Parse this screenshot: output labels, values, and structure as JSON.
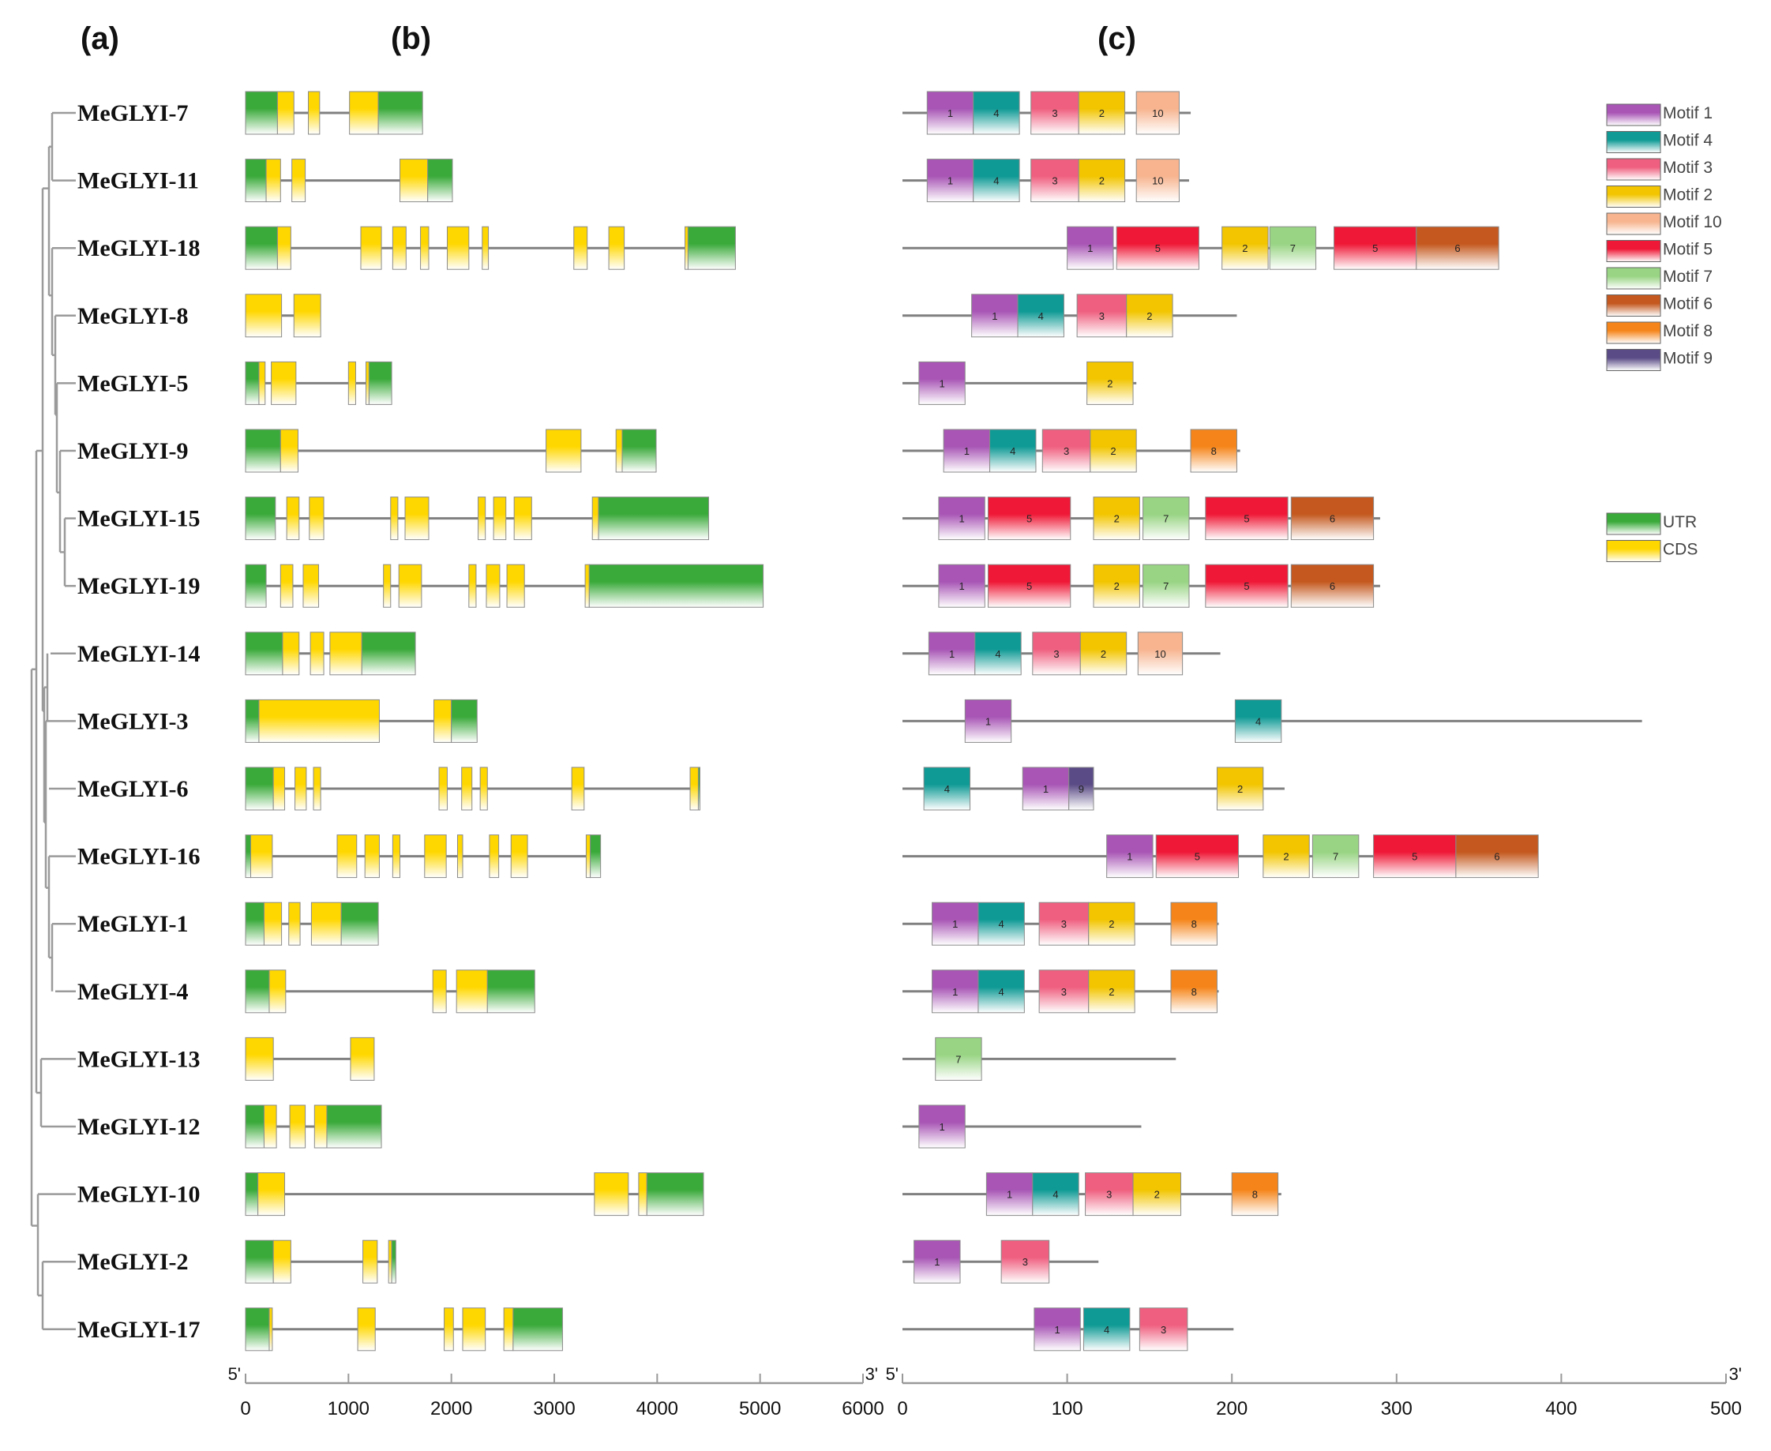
{
  "panel_labels": [
    "(a)",
    "(b)",
    "(c)"
  ],
  "colors": {
    "utr_top": "#3aaa3a",
    "cds_top": "#ffd700",
    "line": "#808080",
    "tree": "#9a9a9a",
    "motifs": {
      "1": "#a855b5",
      "2": "#f2c500",
      "3": "#ef5f7f",
      "4": "#0f9a95",
      "5": "#ef1836",
      "6": "#c4581e",
      "7": "#98d483",
      "8": "#f5851a",
      "9": "#5a4b86",
      "10": "#f7b48f"
    }
  },
  "legend": {
    "motifs": [
      {
        "id": "1",
        "label": "Motif 1"
      },
      {
        "id": "4",
        "label": "Motif 4"
      },
      {
        "id": "3",
        "label": "Motif 3"
      },
      {
        "id": "2",
        "label": "Motif 2"
      },
      {
        "id": "10",
        "label": "Motif 10"
      },
      {
        "id": "5",
        "label": "Motif 5"
      },
      {
        "id": "7",
        "label": "Motif 7"
      },
      {
        "id": "6",
        "label": "Motif 6"
      },
      {
        "id": "8",
        "label": "Motif 8"
      },
      {
        "id": "9",
        "label": "Motif 9"
      }
    ],
    "features": [
      {
        "id": "UTR",
        "label": "UTR"
      },
      {
        "id": "CDS",
        "label": "CDS"
      }
    ]
  },
  "gene_axis": {
    "min": 0,
    "max": 6000,
    "ticks": [
      "0",
      "1000",
      "2000",
      "3000",
      "4000",
      "5000",
      "6000"
    ],
    "start_label": "5'",
    "end_label": "3'"
  },
  "motif_axis": {
    "min": 0,
    "max": 500,
    "ticks": [
      "0",
      "100",
      "200",
      "300",
      "400",
      "500"
    ],
    "start_label": "5'",
    "end_label": "3'"
  },
  "genes": [
    {
      "name": "MeGLYI-7",
      "length": 1720,
      "features": [
        [
          "UTR",
          0,
          310
        ],
        [
          "CDS",
          310,
          470
        ],
        [
          "CDS",
          610,
          720
        ],
        [
          "CDS",
          1010,
          1290
        ],
        [
          "UTR",
          1290,
          1720
        ]
      ],
      "protein_length": 175,
      "motifs": [
        [
          "1",
          15,
          43
        ],
        [
          "4",
          43,
          71
        ],
        [
          "3",
          78,
          107
        ],
        [
          "2",
          107,
          135
        ],
        [
          "10",
          142,
          168
        ]
      ]
    },
    {
      "name": "MeGLYI-11",
      "length": 2010,
      "features": [
        [
          "UTR",
          0,
          200
        ],
        [
          "CDS",
          200,
          340
        ],
        [
          "CDS",
          450,
          580
        ],
        [
          "CDS",
          1500,
          1770
        ],
        [
          "UTR",
          1770,
          2010
        ]
      ],
      "protein_length": 174,
      "motifs": [
        [
          "1",
          15,
          43
        ],
        [
          "4",
          43,
          71
        ],
        [
          "3",
          78,
          107
        ],
        [
          "2",
          107,
          135
        ],
        [
          "10",
          142,
          168
        ]
      ]
    },
    {
      "name": "MeGLYI-18",
      "length": 4760,
      "features": [
        [
          "UTR",
          0,
          310
        ],
        [
          "CDS",
          310,
          440
        ],
        [
          "CDS",
          1120,
          1320
        ],
        [
          "CDS",
          1430,
          1560
        ],
        [
          "CDS",
          1700,
          1780
        ],
        [
          "CDS",
          1960,
          2170
        ],
        [
          "CDS",
          2300,
          2360
        ],
        [
          "CDS",
          3190,
          3320
        ],
        [
          "CDS",
          3530,
          3680
        ],
        [
          "CDS",
          4270,
          4300
        ],
        [
          "UTR",
          4300,
          4760
        ]
      ],
      "protein_length": 361,
      "motifs": [
        [
          "1",
          100,
          128
        ],
        [
          "5",
          130,
          180
        ],
        [
          "2",
          194,
          222
        ],
        [
          "7",
          223,
          251
        ],
        [
          "5",
          262,
          312
        ],
        [
          "6",
          312,
          362
        ]
      ]
    },
    {
      "name": "MeGLYI-8",
      "length": 730,
      "features": [
        [
          "CDS",
          0,
          350
        ],
        [
          "CDS",
          470,
          730
        ]
      ],
      "protein_length": 203,
      "motifs": [
        [
          "1",
          42,
          70
        ],
        [
          "4",
          70,
          98
        ],
        [
          "3",
          106,
          136
        ],
        [
          "2",
          136,
          164
        ]
      ]
    },
    {
      "name": "MeGLYI-5",
      "length": 1420,
      "features": [
        [
          "UTR",
          0,
          130
        ],
        [
          "CDS",
          130,
          190
        ],
        [
          "CDS",
          250,
          490
        ],
        [
          "CDS",
          1000,
          1070
        ],
        [
          "CDS",
          1170,
          1200
        ],
        [
          "UTR",
          1200,
          1420
        ]
      ],
      "protein_length": 142,
      "motifs": [
        [
          "1",
          10,
          38
        ],
        [
          "2",
          112,
          140
        ]
      ]
    },
    {
      "name": "MeGLYI-9",
      "length": 3990,
      "features": [
        [
          "UTR",
          0,
          340
        ],
        [
          "CDS",
          340,
          510
        ],
        [
          "CDS",
          2920,
          3260
        ],
        [
          "CDS",
          3600,
          3660
        ],
        [
          "UTR",
          3660,
          3990
        ]
      ],
      "protein_length": 205,
      "motifs": [
        [
          "1",
          25,
          53
        ],
        [
          "4",
          53,
          81
        ],
        [
          "3",
          85,
          114
        ],
        [
          "2",
          114,
          142
        ],
        [
          "8",
          175,
          203
        ]
      ]
    },
    {
      "name": "MeGLYI-15",
      "length": 4500,
      "features": [
        [
          "UTR",
          0,
          290
        ],
        [
          "CDS",
          400,
          520
        ],
        [
          "CDS",
          620,
          760
        ],
        [
          "CDS",
          1410,
          1480
        ],
        [
          "CDS",
          1550,
          1780
        ],
        [
          "CDS",
          2260,
          2330
        ],
        [
          "CDS",
          2410,
          2530
        ],
        [
          "CDS",
          2610,
          2780
        ],
        [
          "CDS",
          3370,
          3430
        ],
        [
          "UTR",
          3430,
          4500
        ]
      ],
      "protein_length": 290,
      "motifs": [
        [
          "1",
          22,
          50
        ],
        [
          "5",
          52,
          102
        ],
        [
          "2",
          116,
          144
        ],
        [
          "7",
          146,
          174
        ],
        [
          "5",
          184,
          234
        ],
        [
          "6",
          236,
          286
        ]
      ]
    },
    {
      "name": "MeGLYI-19",
      "length": 5030,
      "features": [
        [
          "UTR",
          0,
          200
        ],
        [
          "CDS",
          340,
          460
        ],
        [
          "CDS",
          560,
          710
        ],
        [
          "CDS",
          1340,
          1410
        ],
        [
          "CDS",
          1490,
          1710
        ],
        [
          "CDS",
          2170,
          2240
        ],
        [
          "CDS",
          2340,
          2470
        ],
        [
          "CDS",
          2540,
          2710
        ],
        [
          "CDS",
          3300,
          3340
        ],
        [
          "UTR",
          3340,
          5030
        ]
      ],
      "protein_length": 290,
      "motifs": [
        [
          "1",
          22,
          50
        ],
        [
          "5",
          52,
          102
        ],
        [
          "2",
          116,
          144
        ],
        [
          "7",
          146,
          174
        ],
        [
          "5",
          184,
          234
        ],
        [
          "6",
          236,
          286
        ]
      ]
    },
    {
      "name": "MeGLYI-14",
      "length": 1650,
      "features": [
        [
          "UTR",
          0,
          360
        ],
        [
          "CDS",
          360,
          520
        ],
        [
          "CDS",
          630,
          760
        ],
        [
          "CDS",
          820,
          1130
        ],
        [
          "UTR",
          1130,
          1650
        ]
      ],
      "protein_length": 193,
      "motifs": [
        [
          "1",
          16,
          44
        ],
        [
          "4",
          44,
          72
        ],
        [
          "3",
          79,
          108
        ],
        [
          "2",
          108,
          136
        ],
        [
          "10",
          143,
          170
        ]
      ]
    },
    {
      "name": "MeGLYI-3",
      "length": 2250,
      "features": [
        [
          "UTR",
          0,
          130
        ],
        [
          "CDS",
          130,
          1300
        ],
        [
          "CDS",
          1830,
          2000
        ],
        [
          "UTR",
          2000,
          2250
        ]
      ],
      "protein_length": 449,
      "motifs": [
        [
          "1",
          38,
          66
        ],
        [
          "4",
          202,
          230
        ]
      ]
    },
    {
      "name": "MeGLYI-6",
      "length": 4410,
      "features": [
        [
          "UTR",
          0,
          270
        ],
        [
          "CDS",
          270,
          380
        ],
        [
          "CDS",
          480,
          590
        ],
        [
          "CDS",
          660,
          730
        ],
        [
          "CDS",
          1880,
          1960
        ],
        [
          "CDS",
          2100,
          2200
        ],
        [
          "CDS",
          2280,
          2350
        ],
        [
          "CDS",
          3170,
          3290
        ],
        [
          "CDS",
          4320,
          4400
        ],
        [
          "UTR",
          4400,
          4410
        ]
      ],
      "protein_length": 232,
      "motifs": [
        [
          "4",
          13,
          41
        ],
        [
          "1",
          73,
          101
        ],
        [
          "9",
          101,
          116
        ],
        [
          "2",
          191,
          219
        ]
      ]
    },
    {
      "name": "MeGLYI-16",
      "length": 3450,
      "features": [
        [
          "UTR",
          0,
          50
        ],
        [
          "CDS",
          50,
          260
        ],
        [
          "CDS",
          890,
          1080
        ],
        [
          "CDS",
          1160,
          1300
        ],
        [
          "CDS",
          1430,
          1500
        ],
        [
          "CDS",
          1740,
          1950
        ],
        [
          "CDS",
          2060,
          2110
        ],
        [
          "CDS",
          2370,
          2460
        ],
        [
          "CDS",
          2580,
          2740
        ],
        [
          "CDS",
          3310,
          3350
        ],
        [
          "UTR",
          3350,
          3450
        ]
      ],
      "protein_length": 385,
      "motifs": [
        [
          "1",
          124,
          152
        ],
        [
          "5",
          154,
          204
        ],
        [
          "2",
          219,
          247
        ],
        [
          "7",
          249,
          277
        ],
        [
          "5",
          286,
          336
        ],
        [
          "6",
          336,
          386
        ]
      ]
    },
    {
      "name": "MeGLYI-1",
      "length": 1290,
      "features": [
        [
          "UTR",
          0,
          180
        ],
        [
          "CDS",
          180,
          350
        ],
        [
          "CDS",
          420,
          530
        ],
        [
          "CDS",
          640,
          930
        ],
        [
          "UTR",
          930,
          1290
        ]
      ],
      "protein_length": 192,
      "motifs": [
        [
          "1",
          18,
          46
        ],
        [
          "4",
          46,
          74
        ],
        [
          "3",
          83,
          113
        ],
        [
          "2",
          113,
          141
        ],
        [
          "8",
          163,
          191
        ]
      ]
    },
    {
      "name": "MeGLYI-4",
      "length": 2810,
      "features": [
        [
          "UTR",
          0,
          230
        ],
        [
          "CDS",
          230,
          390
        ],
        [
          "CDS",
          1820,
          1950
        ],
        [
          "CDS",
          2050,
          2350
        ],
        [
          "UTR",
          2350,
          2810
        ]
      ],
      "protein_length": 192,
      "motifs": [
        [
          "1",
          18,
          46
        ],
        [
          "4",
          46,
          74
        ],
        [
          "3",
          83,
          113
        ],
        [
          "2",
          113,
          141
        ],
        [
          "8",
          163,
          191
        ]
      ]
    },
    {
      "name": "MeGLYI-13",
      "length": 1250,
      "features": [
        [
          "CDS",
          0,
          270
        ],
        [
          "CDS",
          1020,
          1250
        ]
      ],
      "protein_length": 166,
      "motifs": [
        [
          "7",
          20,
          48
        ]
      ]
    },
    {
      "name": "MeGLYI-12",
      "length": 1320,
      "features": [
        [
          "UTR",
          0,
          180
        ],
        [
          "CDS",
          180,
          300
        ],
        [
          "CDS",
          430,
          580
        ],
        [
          "CDS",
          670,
          790
        ],
        [
          "UTR",
          790,
          1320
        ]
      ],
      "protein_length": 145,
      "motifs": [
        [
          "1",
          10,
          38
        ]
      ]
    },
    {
      "name": "MeGLYI-10",
      "length": 4450,
      "features": [
        [
          "UTR",
          0,
          120
        ],
        [
          "CDS",
          120,
          380
        ],
        [
          "CDS",
          3390,
          3720
        ],
        [
          "CDS",
          3820,
          3900
        ],
        [
          "UTR",
          3900,
          4450
        ]
      ],
      "protein_length": 230,
      "motifs": [
        [
          "1",
          51,
          79
        ],
        [
          "4",
          79,
          107
        ],
        [
          "3",
          111,
          140
        ],
        [
          "2",
          140,
          169
        ],
        [
          "8",
          200,
          228
        ]
      ]
    },
    {
      "name": "MeGLYI-2",
      "length": 1460,
      "features": [
        [
          "UTR",
          0,
          270
        ],
        [
          "CDS",
          270,
          440
        ],
        [
          "CDS",
          1140,
          1280
        ],
        [
          "CDS",
          1390,
          1420
        ],
        [
          "UTR",
          1420,
          1460
        ]
      ],
      "protein_length": 119,
      "motifs": [
        [
          "1",
          7,
          35
        ],
        [
          "3",
          60,
          89
        ]
      ]
    },
    {
      "name": "MeGLYI-17",
      "length": 3080,
      "features": [
        [
          "UTR",
          0,
          230
        ],
        [
          "CDS",
          230,
          260
        ],
        [
          "CDS",
          1090,
          1260
        ],
        [
          "CDS",
          1930,
          2020
        ],
        [
          "CDS",
          2110,
          2330
        ],
        [
          "CDS",
          2510,
          2600
        ],
        [
          "UTR",
          2600,
          3080
        ]
      ],
      "protein_length": 201,
      "motifs": [
        [
          "1",
          80,
          108
        ],
        [
          "4",
          110,
          138
        ],
        [
          "3",
          144,
          173
        ]
      ]
    }
  ]
}
